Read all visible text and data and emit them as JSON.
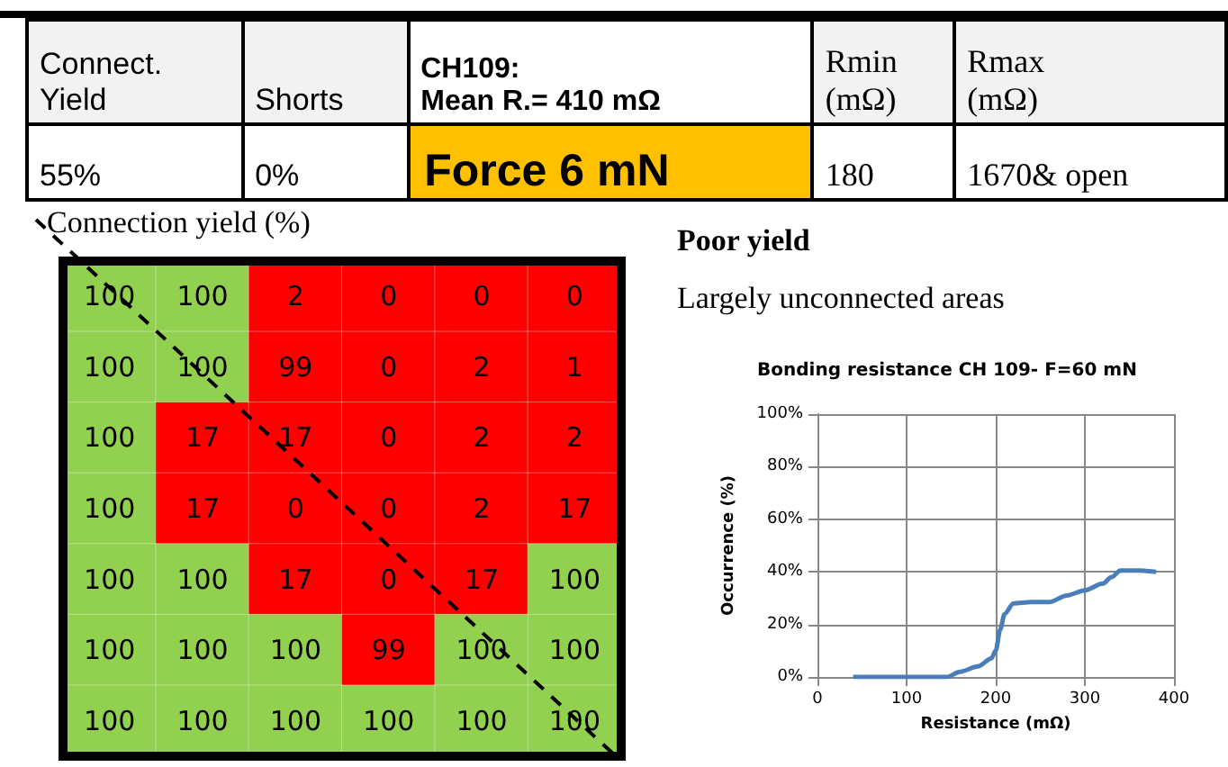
{
  "chart_data": [
    {
      "type": "other",
      "categories": [
        "Connect.\nYield",
        "Shorts",
        "CH109:\nMean R.= 410 mΩ",
        "Rmin\n(mΩ)",
        "Rmax\n (mΩ)"
      ],
      "annotations": [
        "55%",
        "0%",
        "Force 6 mN",
        "180",
        "1670& open"
      ]
    },
    {
      "type": "heatmap",
      "title": "Connection yield (%)",
      "categories": [
        null,
        null,
        null,
        null,
        null,
        null
      ],
      "y_categories": [
        null,
        null,
        null,
        null,
        null,
        null,
        null
      ],
      "cells": [
        [
          100,
          100,
          2,
          0,
          0,
          0
        ],
        [
          100,
          100,
          99,
          0,
          2,
          1
        ],
        [
          100,
          17,
          17,
          0,
          2,
          2
        ],
        [
          100,
          17,
          0,
          0,
          2,
          17
        ],
        [
          100,
          100,
          17,
          0,
          17,
          100
        ],
        [
          100,
          100,
          100,
          99,
          100,
          100
        ],
        [
          100,
          100,
          100,
          100,
          100,
          100
        ]
      ],
      "colors": [
        "#ff0000",
        "#92d050"
      ],
      "data_labels": true
    },
    {
      "type": "other",
      "title": "Poor yield",
      "annotations": [
        "Largely unconnected areas"
      ]
    },
    {
      "type": "line",
      "title": "Bonding resistance CH 109- F=60 mN",
      "xlabel": "Resistance (mΩ)",
      "ylabel": "Occurrence (%)",
      "series": [
        {
          "color": "#4a7ebb",
          "x": [
            40,
            100,
            145,
            160,
            180,
            195,
            200,
            205,
            210,
            220,
            240,
            260,
            280,
            300,
            320,
            330,
            340,
            360,
            380
          ],
          "values": [
            0,
            0,
            0,
            2,
            4,
            7,
            10,
            18,
            24,
            28,
            28.5,
            28.5,
            31,
            33,
            35.5,
            38,
            40.5,
            40.5,
            40
          ]
        }
      ],
      "xlim": [
        0,
        400
      ],
      "xticks": [
        0,
        100,
        200,
        300,
        400
      ],
      "ylim": [
        0,
        100
      ],
      "yticks": [
        {
          "value": 0,
          "label": "0%"
        },
        {
          "value": 20,
          "label": "20%"
        },
        {
          "value": 40,
          "label": "40%"
        },
        {
          "value": 60,
          "label": "60%"
        },
        {
          "value": 80,
          "label": "80%"
        },
        {
          "value": 100,
          "label": "100%"
        }
      ],
      "grid": true,
      "marker": "none",
      "line_style": "solid"
    }
  ]
}
